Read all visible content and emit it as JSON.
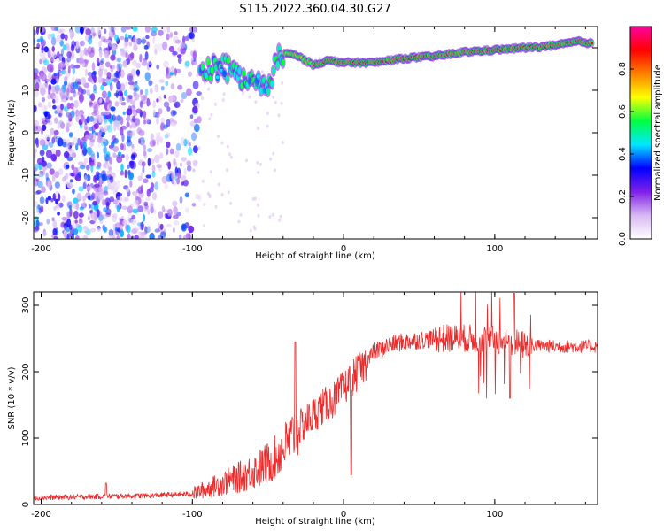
{
  "title": "S115.2022.360.04.30.G27",
  "chart_data": [
    {
      "type": "heatmap",
      "xlabel": "Height of straight line (km)",
      "ylabel": "Frequency (Hz)",
      "xlim": [
        -205,
        168
      ],
      "ylim": [
        -25,
        25
      ],
      "x_ticks": [
        -200,
        -100,
        0,
        100
      ],
      "y_ticks": [
        -20,
        -10,
        0,
        10,
        20
      ],
      "colorbar": {
        "label": "Normalized spectral amplitude",
        "range": [
          0,
          1
        ],
        "ticks": [
          "0.0",
          "0.2",
          "0.4",
          "0.6",
          "0.8"
        ],
        "colormap": [
          "#ffffff",
          "#d8b8f2",
          "#8020e8",
          "#0000ff",
          "#00e8ff",
          "#00ff40",
          "#ffff00",
          "#ff8000",
          "#ff0000",
          "#ff00a0"
        ]
      },
      "ridge": {
        "x": [
          -95,
          -80,
          -70,
          -60,
          -50,
          -45,
          -40,
          -30,
          -20,
          -10,
          0,
          20,
          40,
          60,
          80,
          100,
          120,
          140,
          155,
          165
        ],
        "y": [
          15,
          15.5,
          14,
          12,
          10,
          16,
          19,
          18,
          16,
          17,
          16.5,
          16.5,
          17.5,
          18,
          19,
          19.5,
          20,
          20.5,
          21.5,
          21
        ]
      }
    },
    {
      "type": "line",
      "xlabel": "Height of straight line (km)",
      "ylabel": "SNR (10 * v/v)",
      "xlim": [
        -205,
        168
      ],
      "ylim": [
        0,
        320
      ],
      "x_ticks": [
        -200,
        -100,
        0,
        100
      ],
      "y_ticks": [
        0,
        100,
        200,
        300
      ],
      "color": "#ee2a2a",
      "trend": {
        "x": [
          -205,
          -160,
          -130,
          -100,
          -85,
          -70,
          -55,
          -45,
          -35,
          -25,
          -15,
          -5,
          0,
          10,
          20,
          30,
          40,
          60,
          80,
          100,
          120,
          140,
          168
        ],
        "y": [
          10,
          12,
          13,
          16,
          28,
          40,
          55,
          70,
          100,
          125,
          145,
          160,
          175,
          200,
          230,
          240,
          245,
          250,
          250,
          248,
          240,
          238,
          238
        ]
      },
      "features": [
        {
          "x": -157,
          "y": 32
        },
        {
          "x": -32,
          "y": 245
        },
        {
          "x": 5,
          "y": 45
        },
        {
          "x": 113,
          "y": 318
        },
        {
          "x": 110,
          "y": 160
        }
      ]
    }
  ]
}
